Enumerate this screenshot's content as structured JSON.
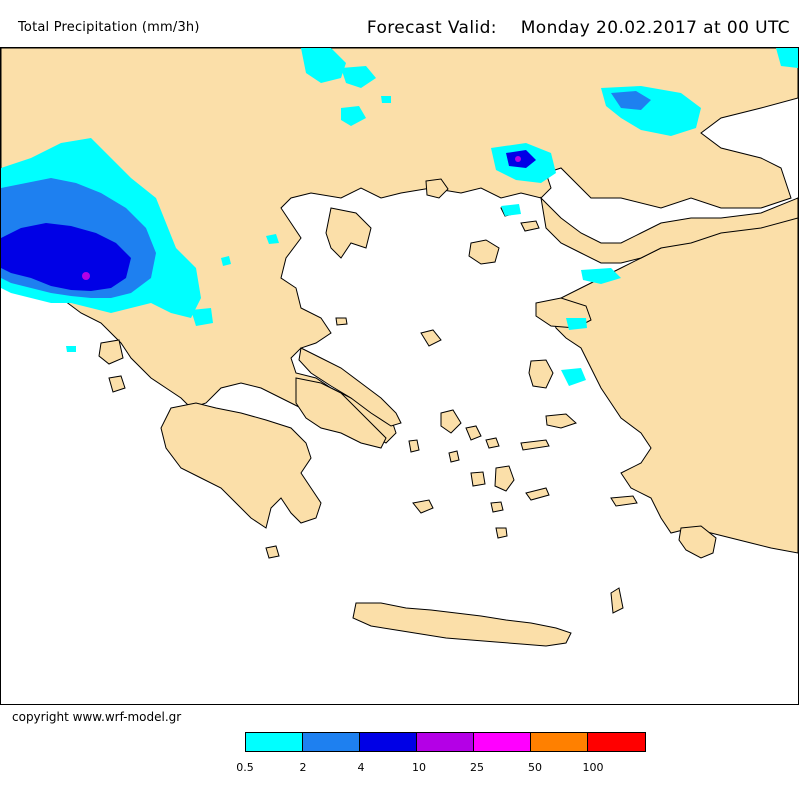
{
  "header": {
    "variable_title": "Total Precipitation (mm/3h)",
    "forecast_label": "Forecast Valid:",
    "forecast_time": "Monday 20.02.2017 at 00 UTC"
  },
  "footer": {
    "copyright": "copyright www.wrf-model.gr"
  },
  "legend": {
    "colors": [
      "#00ffff",
      "#1e80f0",
      "#0000e6",
      "#b400e6",
      "#ff00ff",
      "#ff8000",
      "#ff0000"
    ],
    "labels": [
      "0.5",
      "2",
      "4",
      "10",
      "25",
      "50",
      "100"
    ]
  },
  "map": {
    "land_color": "#fbdfa9",
    "sea_color": "#ffffff",
    "region": "Greece and Aegean Sea"
  }
}
